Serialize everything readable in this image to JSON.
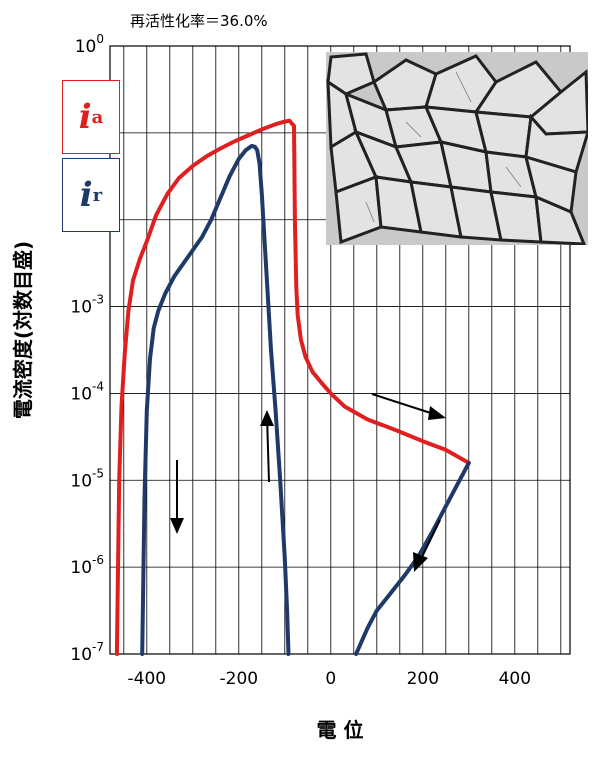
{
  "chart_data": {
    "type": "line",
    "title": "再活性化率＝36.0%",
    "xlabel": "電 位",
    "ylabel": "電流密度(対数目盛)",
    "xlim": [
      -480,
      520
    ],
    "ylim_log10": [
      -7,
      0
    ],
    "y_scale": "log",
    "x_ticks": [
      "-400",
      "-200",
      "0",
      "200",
      "400"
    ],
    "x_tick_values": [
      -400,
      -200,
      0,
      200,
      400
    ],
    "y_ticks": [
      {
        "base": "10",
        "exp": "0",
        "value": 0
      },
      {
        "base": "10",
        "exp": "-3",
        "value": -3
      },
      {
        "base": "10",
        "exp": "-4",
        "value": -4
      },
      {
        "base": "10",
        "exp": "-5",
        "value": -5
      },
      {
        "base": "10",
        "exp": "-6",
        "value": -6
      },
      {
        "base": "10",
        "exp": "-7",
        "value": -7
      }
    ],
    "grid": true,
    "series": [
      {
        "name": "ia",
        "color": "#e02020",
        "x": [
          -465,
          -463,
          -460,
          -455,
          -448,
          -440,
          -430,
          -415,
          -400,
          -380,
          -355,
          -330,
          -300,
          -270,
          -240,
          -210,
          -180,
          -150,
          -120,
          -100,
          -90,
          -80,
          -78,
          -75,
          -72,
          -65,
          -55,
          -40,
          -20,
          0,
          30,
          80,
          140,
          200,
          250,
          300
        ],
        "y": [
          -7.0,
          -6.2,
          -5.0,
          -4.15,
          -3.55,
          -3.05,
          -2.7,
          -2.45,
          -2.25,
          -1.95,
          -1.7,
          -1.52,
          -1.38,
          -1.27,
          -1.18,
          -1.1,
          -1.03,
          -0.96,
          -0.9,
          -0.87,
          -0.86,
          -0.92,
          -2.0,
          -2.78,
          -3.1,
          -3.38,
          -3.58,
          -3.75,
          -3.88,
          -4.0,
          -4.15,
          -4.3,
          -4.42,
          -4.55,
          -4.65,
          -4.8
        ]
      },
      {
        "name": "ir",
        "color": "#1f3a68",
        "x": [
          -410,
          -408,
          -405,
          -400,
          -393,
          -385,
          -375,
          -360,
          -340,
          -320,
          -300,
          -280,
          -260,
          -240,
          -220,
          -200,
          -185,
          -172,
          -165,
          -160,
          -155,
          -150,
          -140,
          -130,
          -120,
          -110,
          -100,
          -95,
          -92
        ],
        "y": [
          -7.0,
          -6.3,
          -5.2,
          -4.2,
          -3.6,
          -3.25,
          -3.05,
          -2.85,
          -2.65,
          -2.5,
          -2.35,
          -2.2,
          -2.0,
          -1.75,
          -1.5,
          -1.3,
          -1.2,
          -1.15,
          -1.16,
          -1.2,
          -1.35,
          -1.7,
          -2.6,
          -3.5,
          -4.2,
          -5.0,
          -5.9,
          -6.5,
          -7.0
        ]
      },
      {
        "name": "ir-return",
        "color": "#1f3a68",
        "x": [
          300,
          280,
          250,
          220,
          190,
          160,
          130,
          100,
          80,
          65,
          55
        ],
        "y": [
          -4.8,
          -5.0,
          -5.3,
          -5.6,
          -5.88,
          -6.1,
          -6.3,
          -6.5,
          -6.7,
          -6.88,
          -7.0
        ]
      }
    ],
    "legend": [
      "ia",
      "ir"
    ],
    "legend_placement": "left"
  }
}
